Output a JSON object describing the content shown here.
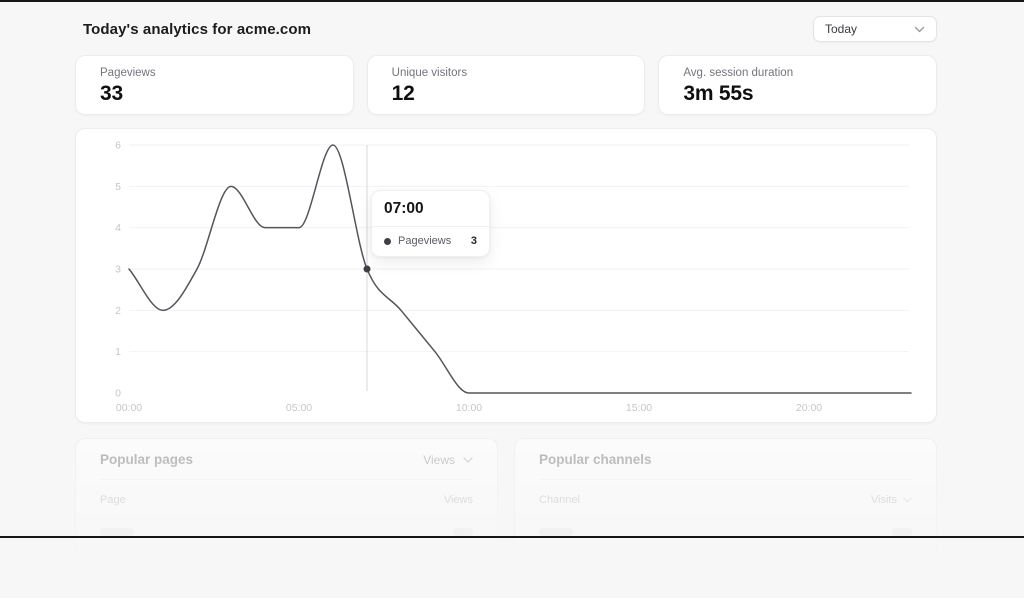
{
  "header": {
    "title": "Today's analytics for acme.com",
    "date_range": {
      "value": "Today"
    }
  },
  "stats": [
    {
      "label": "Pageviews",
      "value": "33"
    },
    {
      "label": "Unique visitors",
      "value": "12"
    },
    {
      "label": "Avg. session duration",
      "value": "3m 55s"
    }
  ],
  "chart_data": {
    "type": "line",
    "x": [
      "00:00",
      "01:00",
      "02:00",
      "03:00",
      "04:00",
      "05:00",
      "06:00",
      "07:00",
      "08:00",
      "09:00",
      "10:00",
      "11:00",
      "12:00",
      "13:00",
      "14:00",
      "15:00",
      "16:00",
      "17:00",
      "18:00",
      "19:00",
      "20:00",
      "21:00",
      "22:00",
      "23:00"
    ],
    "series": [
      {
        "name": "Pageviews",
        "color": "#54545c",
        "values": [
          3,
          2,
          3,
          5,
          4,
          4,
          6,
          3,
          2,
          1,
          0,
          0,
          0,
          0,
          0,
          0,
          0,
          0,
          0,
          0,
          0,
          0,
          0,
          0
        ]
      }
    ],
    "x_ticks": [
      {
        "hour": 0,
        "label": "00:00"
      },
      {
        "hour": 5,
        "label": "05:00"
      },
      {
        "hour": 10,
        "label": "10:00"
      },
      {
        "hour": 15,
        "label": "15:00"
      },
      {
        "hour": 20,
        "label": "20:00"
      }
    ],
    "y_ticks": [
      0,
      1,
      2,
      3,
      4,
      5,
      6
    ],
    "ylim": [
      0,
      6
    ],
    "grid": "horizontal-faint",
    "legend": "none",
    "tooltip": {
      "hour": 7,
      "time": "07:00",
      "series": "Pageviews",
      "value": 3
    }
  },
  "sections": {
    "popular_pages": {
      "title": "Popular pages",
      "sort_dropdown": "Views",
      "columns": {
        "left": "Page",
        "right": "Views"
      }
    },
    "popular_channels": {
      "title": "Popular channels",
      "columns": {
        "left": "Channel",
        "right": "Visits"
      }
    }
  },
  "colors": {
    "page_background": "#f7f7f7",
    "card_background": "#ffffff",
    "line": "#54545c",
    "crosshair": "#d8d8db",
    "axis_text": "#c6c6cb",
    "edge_bar": "#161616"
  }
}
